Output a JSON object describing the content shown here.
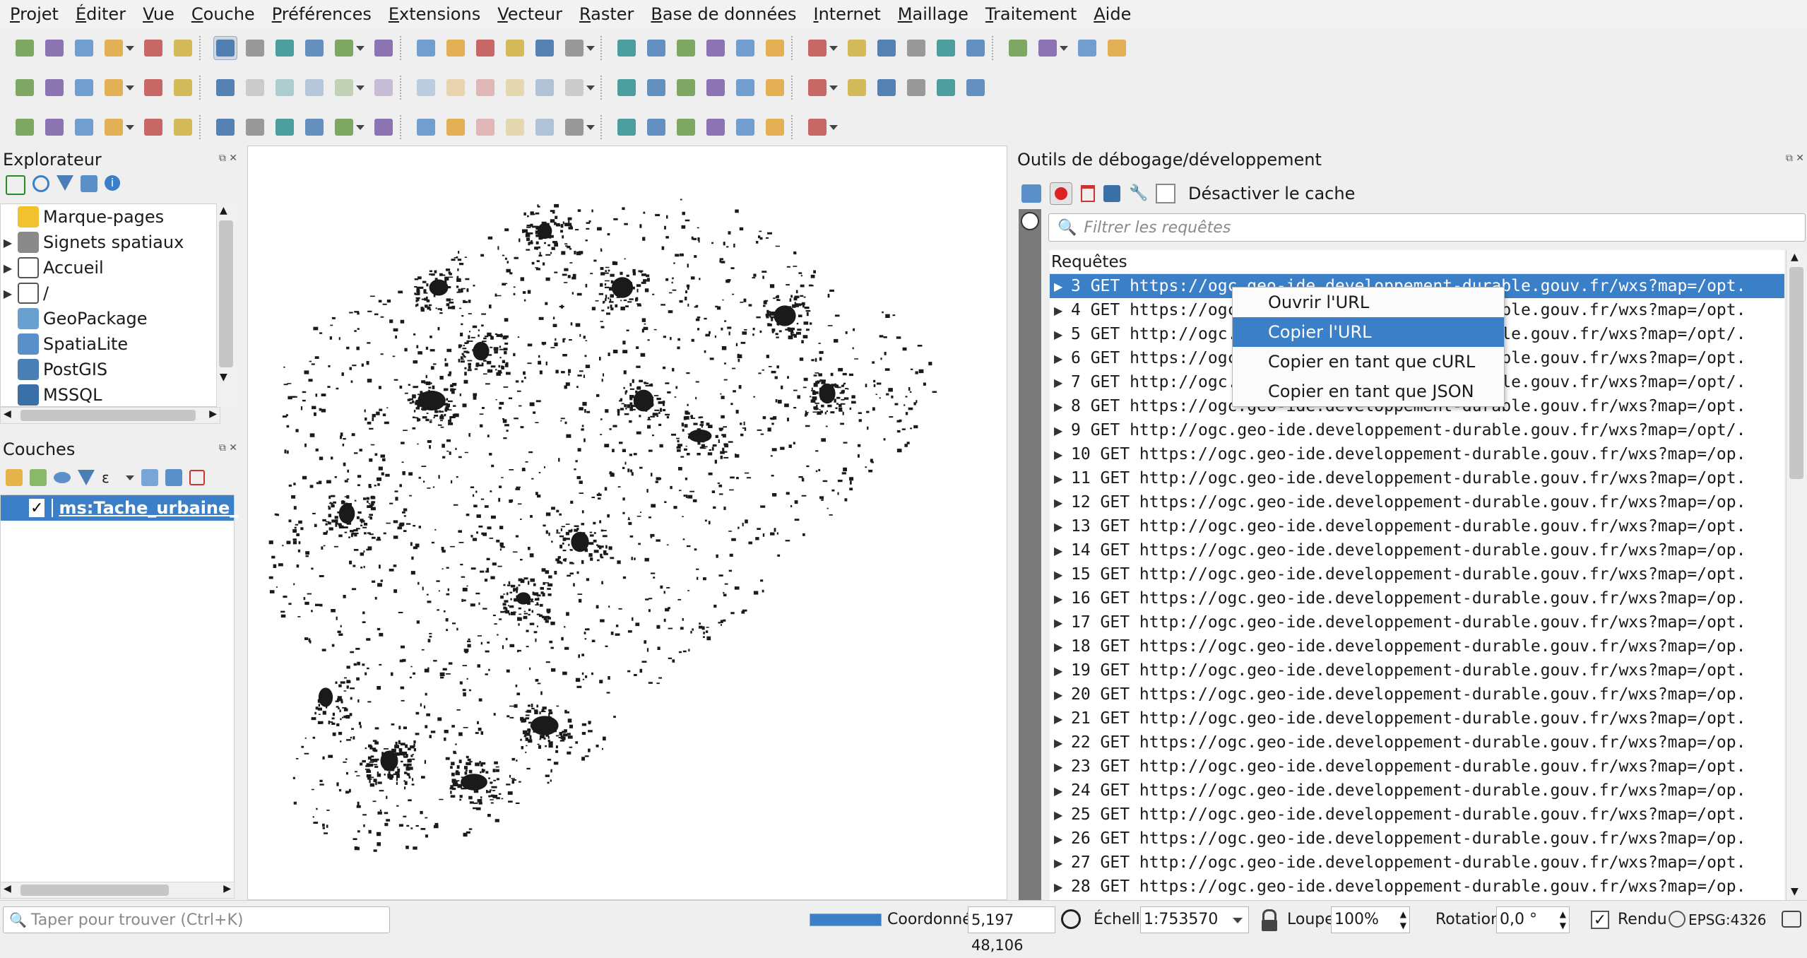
{
  "menu": [
    "Projet",
    "Éditer",
    "Vue",
    "Couche",
    "Préférences",
    "Extensions",
    "Vecteur",
    "Raster",
    "Base de données",
    "Internet",
    "Maillage",
    "Traitement",
    "Aide"
  ],
  "icons": {
    "toolbar1": [
      "new-project-icon",
      "open-project-icon",
      "save-project-icon",
      "save-as-icon",
      "print-layout-icon",
      "style-manager-icon",
      "pan-icon",
      "pan-to-selection-icon",
      "zoom-in-icon",
      "zoom-out-icon",
      "zoom-full-icon",
      "zoom-selection-icon",
      "zoom-layer-icon",
      "zoom-native-icon",
      "zoom-last-icon",
      "zoom-next-icon",
      "new-map-view-icon",
      "new-3d-view-icon",
      "new-bookmark-icon",
      "show-bookmarks-icon",
      "temporal-icon",
      "refresh-icon",
      "select-feature-icon",
      "attribute-table-icon",
      "deselect-icon",
      "open-field-calc-icon",
      "identify-icon",
      "statistics-icon",
      "processing-icon",
      "sum-icon",
      "table-icon",
      "measure-icon",
      "map-tips-icon",
      "locator-icon"
    ],
    "toolbar2": [
      "data-source-manager-icon",
      "new-geopackage-icon",
      "digitize-icon",
      "new-virtual-layer-icon",
      "add-wms-icon",
      "add-raster-icon",
      "edit-icon",
      "pencil-icon",
      "save-edits-icon",
      "add-feature-icon",
      "vertex-tool-icon",
      "modify-attributes-icon",
      "delete-icon",
      "cut-icon",
      "copy-icon",
      "paste-icon",
      "undo-icon",
      "redo-icon",
      "label-icon",
      "label-pin-icon",
      "label-highlight-icon",
      "label-abc-icon",
      "label-show-icon",
      "label-move-icon",
      "label-rotate-icon",
      "label-change-icon",
      "globe-icon",
      "python-icon",
      "plugin-icon",
      "help-icon"
    ],
    "toolbar3": [
      "rectangle-icon",
      "line-icon",
      "point-icon",
      "gps-icon",
      "heatmap-icon",
      "raster-calc-icon",
      "lips-icon",
      "texture-icon",
      "flower-icon",
      "flower2-icon",
      "paint-icon",
      "gradient-icon",
      "bars-icon",
      "palette-icon",
      "edit-annotation-icon",
      "node-tool-icon",
      "move-icon",
      "text-annotation-icon",
      "select-annotation-icon",
      "add-node-icon",
      "connect-icon",
      "star-icon",
      "text-tool-icon",
      "text-frame-icon",
      "profile-icon"
    ]
  },
  "explorer": {
    "title": "Explorateur",
    "items": [
      {
        "label": "Marque-pages",
        "icon": "star-icon",
        "expandable": false
      },
      {
        "label": "Signets spatiaux",
        "icon": "bookmark-icon",
        "expandable": true
      },
      {
        "label": "Accueil",
        "icon": "home-icon",
        "expandable": true
      },
      {
        "label": "/",
        "icon": "folder-icon",
        "expandable": true
      },
      {
        "label": "GeoPackage",
        "icon": "geopackage-icon",
        "expandable": false
      },
      {
        "label": "SpatiaLite",
        "icon": "spatialite-icon",
        "expandable": false
      },
      {
        "label": "PostGIS",
        "icon": "postgis-icon",
        "expandable": false
      },
      {
        "label": "MSSQL",
        "icon": "mssql-icon",
        "expandable": false
      }
    ]
  },
  "layers": {
    "title": "Couches",
    "items": [
      {
        "label": "ms:Tache_urbaine_",
        "checked": true,
        "color": "#b47fa0"
      }
    ]
  },
  "debug": {
    "title": "Outils de débogage/développement",
    "disable_cache_label": "Désactiver le cache",
    "filter_placeholder": "Filtrer les requêtes",
    "requests_header": "Requêtes",
    "requests": [
      {
        "id": "3",
        "text": "3 GET https://ogc.geo-ide.developpement-durable.gouv.fr/wxs?map=/opt."
      },
      {
        "id": "4",
        "text": "4 GET https://ogc.geo-ide.developpement-durable.gouv.fr/wxs?map=/opt."
      },
      {
        "id": "5",
        "text": "5 GET http://ogc.geo-ide.developpement-durable.gouv.fr/wxs?map=/opt/."
      },
      {
        "id": "6",
        "text": "6 GET https://ogc.geo-ide.developpement-durable.gouv.fr/wxs?map=/opt."
      },
      {
        "id": "7",
        "text": "7 GET http://ogc.geo-ide.developpement-durable.gouv.fr/wxs?map=/opt/."
      },
      {
        "id": "8",
        "text": "8 GET https://ogc.geo-ide.developpement-durable.gouv.fr/wxs?map=/opt."
      },
      {
        "id": "9",
        "text": "9 GET http://ogc.geo-ide.developpement-durable.gouv.fr/wxs?map=/opt/."
      },
      {
        "id": "10",
        "text": "10 GET https://ogc.geo-ide.developpement-durable.gouv.fr/wxs?map=/op."
      },
      {
        "id": "11",
        "text": "11 GET http://ogc.geo-ide.developpement-durable.gouv.fr/wxs?map=/opt."
      },
      {
        "id": "12",
        "text": "12 GET https://ogc.geo-ide.developpement-durable.gouv.fr/wxs?map=/op."
      },
      {
        "id": "13",
        "text": "13 GET http://ogc.geo-ide.developpement-durable.gouv.fr/wxs?map=/opt."
      },
      {
        "id": "14",
        "text": "14 GET https://ogc.geo-ide.developpement-durable.gouv.fr/wxs?map=/op."
      },
      {
        "id": "15",
        "text": "15 GET http://ogc.geo-ide.developpement-durable.gouv.fr/wxs?map=/opt."
      },
      {
        "id": "16",
        "text": "16 GET https://ogc.geo-ide.developpement-durable.gouv.fr/wxs?map=/op."
      },
      {
        "id": "17",
        "text": "17 GET http://ogc.geo-ide.developpement-durable.gouv.fr/wxs?map=/opt."
      },
      {
        "id": "18",
        "text": "18 GET https://ogc.geo-ide.developpement-durable.gouv.fr/wxs?map=/op."
      },
      {
        "id": "19",
        "text": "19 GET http://ogc.geo-ide.developpement-durable.gouv.fr/wxs?map=/opt."
      },
      {
        "id": "20",
        "text": "20 GET https://ogc.geo-ide.developpement-durable.gouv.fr/wxs?map=/op."
      },
      {
        "id": "21",
        "text": "21 GET http://ogc.geo-ide.developpement-durable.gouv.fr/wxs?map=/opt."
      },
      {
        "id": "22",
        "text": "22 GET https://ogc.geo-ide.developpement-durable.gouv.fr/wxs?map=/op."
      },
      {
        "id": "23",
        "text": "23 GET http://ogc.geo-ide.developpement-durable.gouv.fr/wxs?map=/opt."
      },
      {
        "id": "24",
        "text": "24 GET https://ogc.geo-ide.developpement-durable.gouv.fr/wxs?map=/op."
      },
      {
        "id": "25",
        "text": "25 GET http://ogc.geo-ide.developpement-durable.gouv.fr/wxs?map=/opt."
      },
      {
        "id": "26",
        "text": "26 GET https://ogc.geo-ide.developpement-durable.gouv.fr/wxs?map=/op."
      },
      {
        "id": "27",
        "text": "27 GET http://ogc.geo-ide.developpement-durable.gouv.fr/wxs?map=/opt."
      },
      {
        "id": "28",
        "text": "28 GET https://ogc.geo-ide.developpement-durable.gouv.fr/wxs?map=/op."
      }
    ],
    "selected_request": "3"
  },
  "context_menu": {
    "items": [
      "Ouvrir l'URL",
      "Copier l'URL",
      "Copier en tant que cURL",
      "Copier en tant que JSON"
    ],
    "highlighted": 1
  },
  "status": {
    "search_placeholder": "Taper pour trouver (Ctrl+K)",
    "progress": 1.0,
    "coord_label": "Coordonnée",
    "coord_value": "5,197 48,106",
    "scale_label": "Échelle",
    "scale_value": "1:753570",
    "magnifier_label": "Loupe",
    "magnifier_value": "100%",
    "rotation_label": "Rotation",
    "rotation_value": "0,0 °",
    "render_label": "Rendu",
    "render_checked": true,
    "crs": "EPSG:4326"
  },
  "colors": {
    "accent": "#3b7fc8",
    "map_features": "#1a1a1a",
    "layer_fill": "#b47fa0",
    "record_red": "#d22"
  }
}
